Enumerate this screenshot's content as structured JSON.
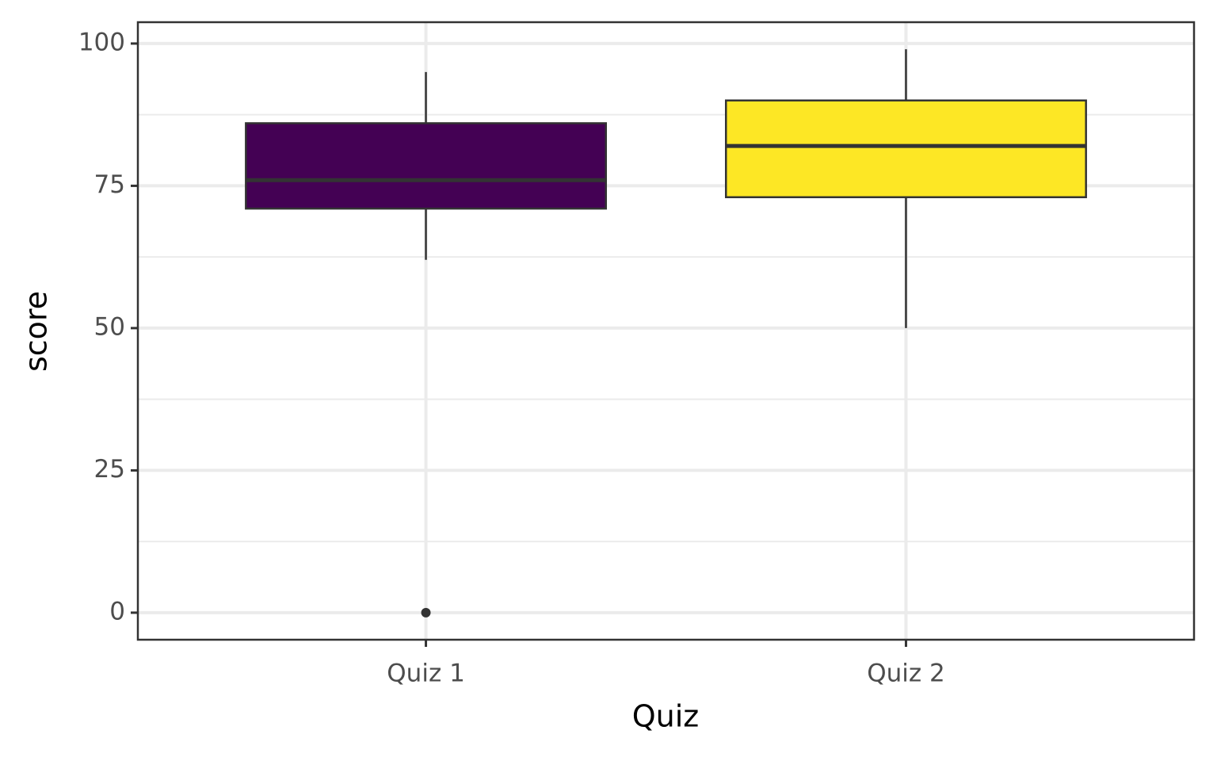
{
  "chart_data": {
    "type": "box",
    "x_label": "Quiz",
    "y_label": "score",
    "categories": [
      "Quiz 1",
      "Quiz 2"
    ],
    "boxes": [
      {
        "whisker_low": 62,
        "q1": 71,
        "median": 76,
        "q3": 86,
        "whisker_high": 95,
        "outliers": [
          0
        ],
        "color": "#440154"
      },
      {
        "whisker_low": 50,
        "q1": 73,
        "median": 82,
        "q3": 90,
        "whisker_high": 99,
        "outliers": [],
        "color": "#fde725"
      }
    ],
    "ylim": [
      -4.75,
      103.75
    ],
    "yticks": [
      0,
      25,
      50,
      75,
      100
    ],
    "minor_yticks": [
      12.5,
      37.5,
      62.5,
      87.5
    ],
    "grid": true
  }
}
